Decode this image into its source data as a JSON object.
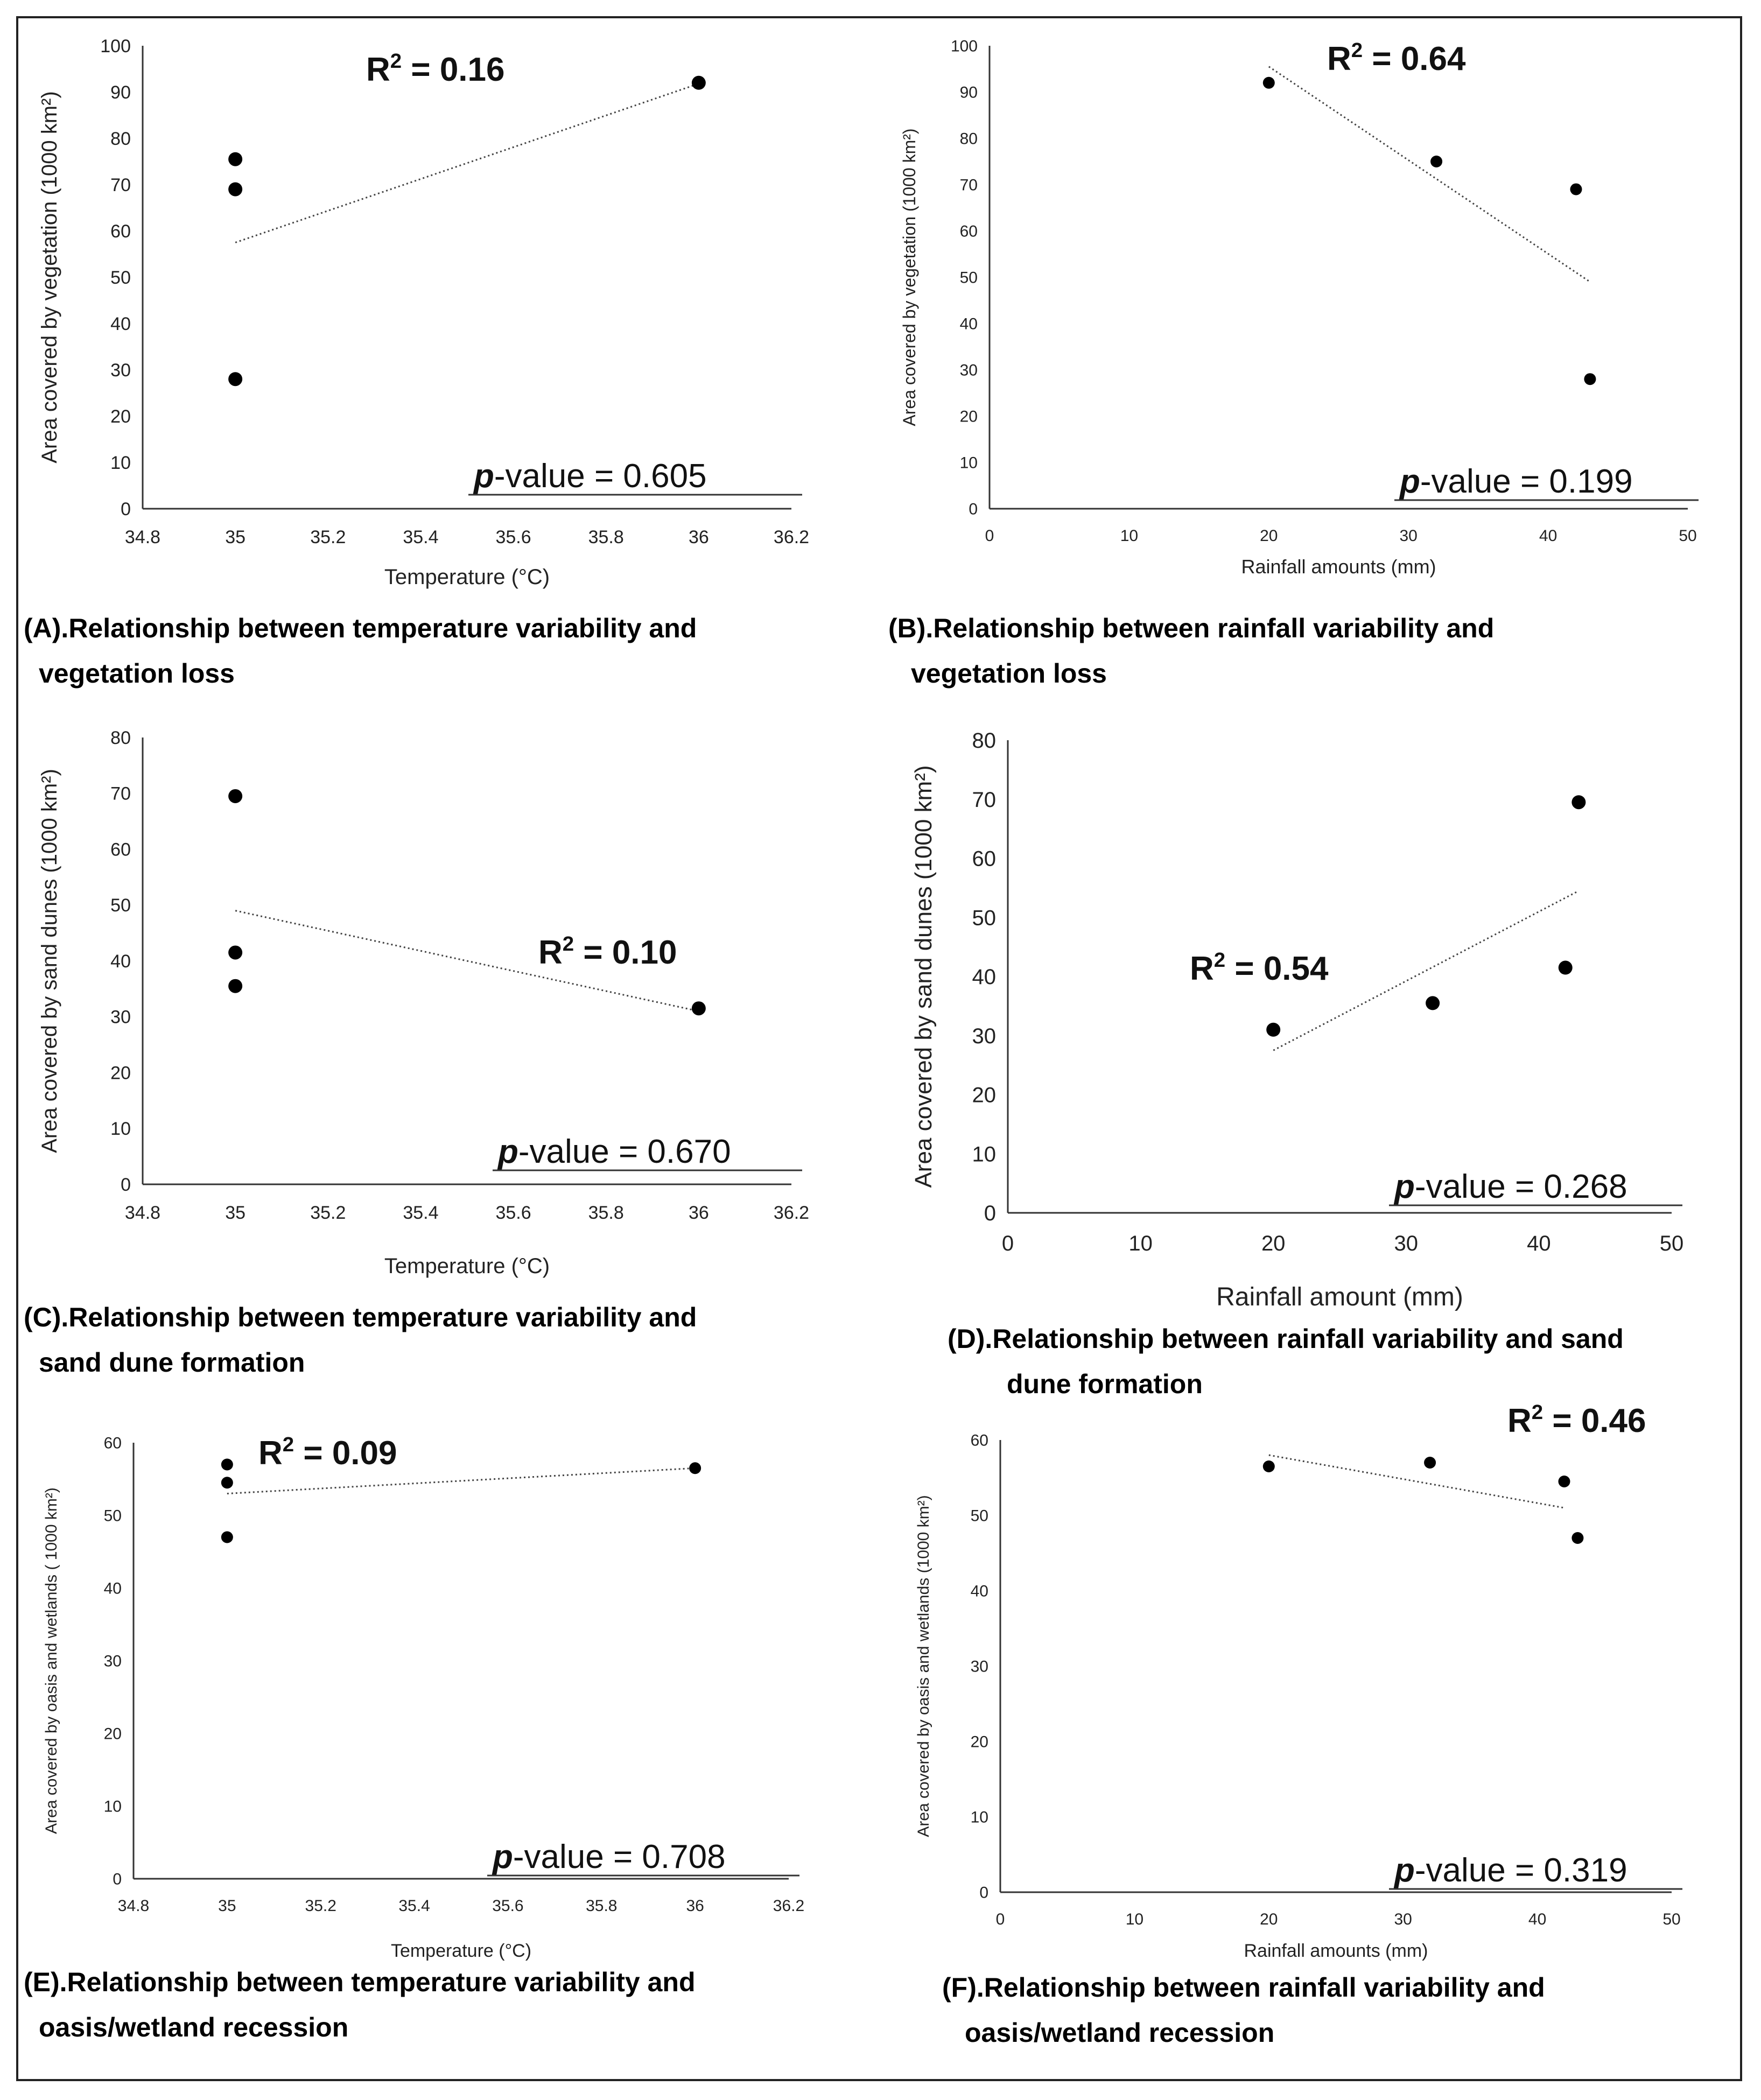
{
  "chart_data": [
    {
      "id": "A",
      "type": "scatter",
      "title": "Relationship between temperature variability and vegetation loss",
      "caption_label": "(A).",
      "caption_line1": "Relationship between temperature variability and",
      "caption_line2": "vegetation loss",
      "xlabel": "Temperature (°C)",
      "ylabel": "Area covered by vegetation  (1000 km²)",
      "xlim": [
        34.8,
        36.2
      ],
      "ylim": [
        0,
        100
      ],
      "xticks": [
        "34.8",
        "35",
        "35.2",
        "35.4",
        "35.6",
        "35.8",
        "36",
        "36.2"
      ],
      "yticks": [
        "0",
        "10",
        "20",
        "30",
        "40",
        "50",
        "60",
        "70",
        "80",
        "90",
        "100"
      ],
      "x": [
        35,
        35,
        35,
        36
      ],
      "y": [
        75.5,
        69,
        28,
        92
      ],
      "trendline": [
        [
          35,
          57.5
        ],
        [
          36.02,
          92.5
        ]
      ],
      "r2_prefix": "R",
      "r2_sup": "2",
      "r2_value": " =  0.16",
      "p_italic": "p",
      "p_value": "-value = 0.605"
    },
    {
      "id": "B",
      "type": "scatter",
      "title": "Relationship between rainfall variability and vegetation loss",
      "caption_label": "(B).",
      "caption_line1": "Relationship between rainfall variability and",
      "caption_line2": "vegetation loss",
      "xlabel": "Rainfall amounts (mm)",
      "ylabel": "Area covered by vegetation (1000 km²)",
      "xlim": [
        0,
        50
      ],
      "ylim": [
        0,
        100
      ],
      "xticks": [
        "0",
        "10",
        "20",
        "30",
        "40",
        "50"
      ],
      "yticks": [
        "0",
        "10",
        "20",
        "30",
        "40",
        "50",
        "60",
        "70",
        "80",
        "90",
        "100"
      ],
      "x": [
        20,
        32,
        42,
        43
      ],
      "y": [
        92,
        75,
        69,
        28
      ],
      "trendline": [
        [
          20,
          95.5
        ],
        [
          43,
          49
        ]
      ],
      "r2_prefix": "R",
      "r2_sup": "2",
      "r2_value": " = 0.64",
      "p_italic": "p",
      "p_value": "-value = 0.199"
    },
    {
      "id": "C",
      "type": "scatter",
      "title": "Relationship between temperature variability and sand dune formation",
      "caption_label": "(C).",
      "caption_line1": "Relationship between temperature variability and",
      "caption_line2": "sand dune formation",
      "xlabel": "Temperature (°C)",
      "ylabel": "Area covered by sand dunes (1000 km²)",
      "xlim": [
        34.8,
        36.2
      ],
      "ylim": [
        0,
        80
      ],
      "xticks": [
        "34.8",
        "35",
        "35.2",
        "35.4",
        "35.6",
        "35.8",
        "36",
        "36.2"
      ],
      "yticks": [
        "0",
        "10",
        "20",
        "30",
        "40",
        "50",
        "60",
        "70",
        "80"
      ],
      "x": [
        35,
        35,
        35,
        36
      ],
      "y": [
        69.5,
        41.5,
        35.5,
        31.5
      ],
      "trendline": [
        [
          35,
          49
        ],
        [
          36,
          31
        ]
      ],
      "r2_prefix": "R",
      "r2_sup": "2",
      "r2_value": " =  0.10",
      "p_italic": "p",
      "p_value": "-value = 0.670"
    },
    {
      "id": "D",
      "type": "scatter",
      "title": "Relationship between rainfall variability and sand dune formation",
      "caption_label": "(D).",
      "caption_line1": "Relationship between rainfall variability and sand",
      "caption_line2": "dune formation",
      "xlabel": "Rainfall amount (mm)",
      "ylabel": "Area covered by sand dunes (1000 km²)",
      "xlim": [
        0,
        50
      ],
      "ylim": [
        0,
        80
      ],
      "xticks": [
        "0",
        "10",
        "20",
        "30",
        "40",
        "50"
      ],
      "yticks": [
        "0",
        "10",
        "20",
        "30",
        "40",
        "50",
        "60",
        "70",
        "80"
      ],
      "x": [
        20,
        32,
        42,
        43
      ],
      "y": [
        31,
        35.5,
        41.5,
        69.5
      ],
      "trendline": [
        [
          20,
          27.5
        ],
        [
          43,
          54.5
        ]
      ],
      "r2_prefix": "R",
      "r2_sup": "2",
      "r2_value": " = 0.54",
      "p_italic": "p",
      "p_value": "-value = 0.268"
    },
    {
      "id": "E",
      "type": "scatter",
      "title": "Relationship between temperature variability and oasis/wetland recession",
      "caption_label": "(E).",
      "caption_line1": "Relationship between temperature variability and",
      "caption_line2": "oasis/wetland recession",
      "xlabel": "Temperature (°C)",
      "ylabel": "Area covered by oasis and wetlands ( 1000 km²)",
      "xlim": [
        34.8,
        36.2
      ],
      "ylim": [
        0,
        60
      ],
      "xticks": [
        "34.8",
        "35",
        "35.2",
        "35.4",
        "35.6",
        "35.8",
        "36",
        "36.2"
      ],
      "yticks": [
        "0",
        "10",
        "20",
        "30",
        "40",
        "50",
        "60"
      ],
      "x": [
        35,
        35,
        35,
        36
      ],
      "y": [
        57,
        54.5,
        47,
        56.5
      ],
      "trendline": [
        [
          35,
          53
        ],
        [
          36,
          56.5
        ]
      ],
      "r2_prefix": "R",
      "r2_sup": "2",
      "r2_value": " =  0.09",
      "p_italic": "p",
      "p_value": "-value = 0.708"
    },
    {
      "id": "F",
      "type": "scatter",
      "title": "Relationship between rainfall variability and oasis/wetland recession",
      "caption_label": "(F).",
      "caption_line1": "Relationship between rainfall variability and",
      "caption_line2": "oasis/wetland recession",
      "xlabel": "Rainfall amounts (mm)",
      "ylabel": "Area covered by oasis and wetlands (1000 km²)",
      "xlim": [
        0,
        50
      ],
      "ylim": [
        0,
        60
      ],
      "xticks": [
        "0",
        "10",
        "20",
        "30",
        "40",
        "50"
      ],
      "yticks": [
        "0",
        "10",
        "20",
        "30",
        "40",
        "50",
        "60"
      ],
      "x": [
        20,
        32,
        42,
        43
      ],
      "y": [
        56.5,
        57,
        54.5,
        47
      ],
      "trendline": [
        [
          20,
          58
        ],
        [
          42,
          51
        ]
      ],
      "r2_prefix": "R",
      "r2_sup": "2",
      "r2_value": " = 0.46",
      "p_italic": "p",
      "p_value": "-value = 0.319"
    }
  ]
}
